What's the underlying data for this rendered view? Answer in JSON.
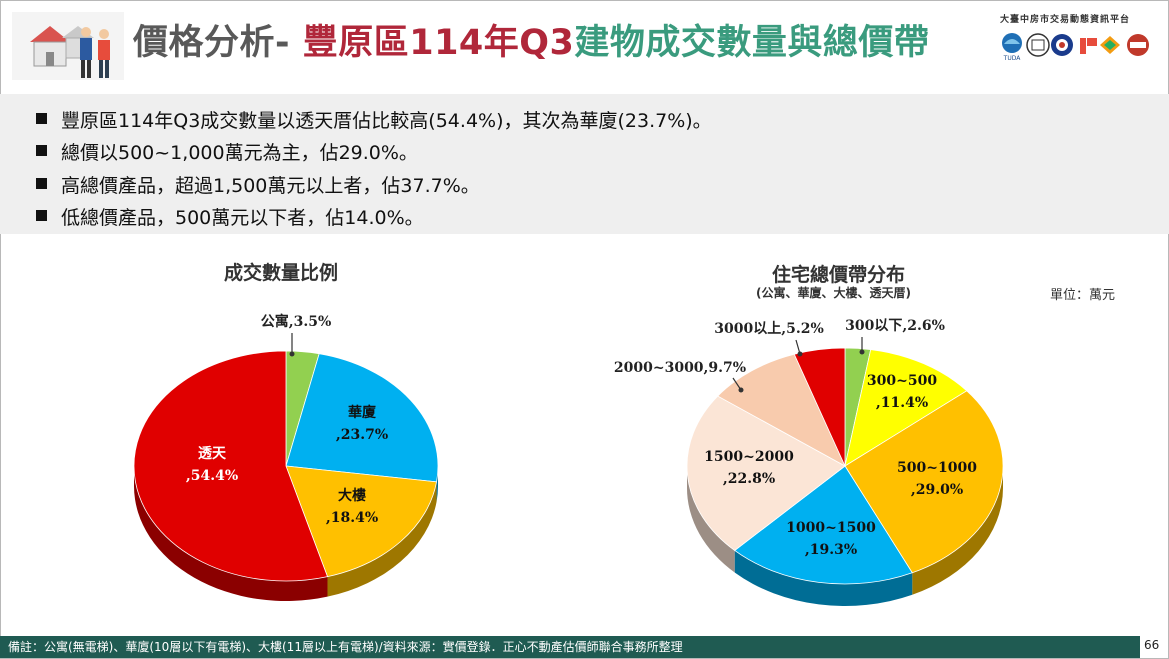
{
  "header": {
    "title_part1": "價格分析-",
    "title_part2": "豐原區114年Q3",
    "title_part3": "建物成交數量與總價帶",
    "agency": "大臺中房市交易動態資訊平台",
    "logo_text": "TUDA"
  },
  "summary": {
    "bullets": [
      "豐原區114年Q3成交數量以透天厝佔比較高(54.4%)，其次為華廈(23.7%)。",
      "總價以500~1,000萬元為主，佔29.0%。",
      "高總價產品，超過1,500萬元以上者，佔37.7%。",
      "低總價產品，500萬元以下者，佔14.0%。"
    ]
  },
  "chart_data": [
    {
      "type": "pie",
      "title": "成交數量比例",
      "slices": [
        {
          "label": "公寓",
          "value": 3.5,
          "text": "公寓,3.5%",
          "color": "#92d050"
        },
        {
          "label": "華廈",
          "value": 23.7,
          "text": "華廈,23.7%",
          "color": "#00b0f0"
        },
        {
          "label": "大樓",
          "value": 18.4,
          "text": "大樓,18.4%",
          "color": "#ffc000"
        },
        {
          "label": "透天",
          "value": 54.4,
          "text": "透天,54.4%",
          "color": "#e00000"
        }
      ]
    },
    {
      "type": "pie",
      "title": "住宅總價帶分布",
      "subtitle": "(公寓、華廈、大樓、透天厝)",
      "unit": "單位：萬元",
      "slices": [
        {
          "label": "300以下",
          "value": 2.6,
          "text": "300以下,2.6%",
          "color": "#92d050"
        },
        {
          "label": "300~500",
          "value": 11.4,
          "text": "300~500,11.4%",
          "color": "#ffff00"
        },
        {
          "label": "500~1000",
          "value": 29.0,
          "text": "500~1000,29.0%",
          "color": "#ffc000"
        },
        {
          "label": "1000~1500",
          "value": 19.3,
          "text": "1000~1500,19.3%",
          "color": "#00b0f0"
        },
        {
          "label": "1500~2000",
          "value": 22.8,
          "text": "1500~2000,22.8%",
          "color": "#fbe5d6"
        },
        {
          "label": "2000~3000",
          "value": 9.7,
          "text": "2000~3000,9.7%",
          "color": "#f8cbad"
        },
        {
          "label": "3000以上",
          "value": 5.2,
          "text": "3000以上,5.2%",
          "color": "#e00000"
        }
      ]
    }
  ],
  "footer": {
    "note": "備註：公寓(無電梯)、華廈(10層以下有電梯)、大樓(11層以上有電梯)/資料來源：實價登錄．正心不動產估價師聯合事務所整理",
    "page": "66"
  }
}
